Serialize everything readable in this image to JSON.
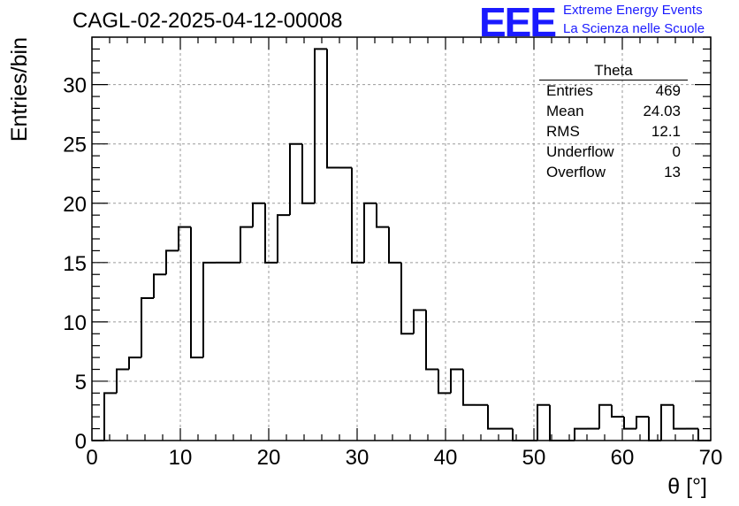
{
  "run_title": "CAGL-02-2025-04-12-00008",
  "logo": {
    "mark": "EEE",
    "line1": "Extreme Energy Events",
    "line2": "La Scienza nelle Scuole",
    "color": "#1a1aff"
  },
  "stats_box": {
    "title": "Theta",
    "rows": [
      {
        "label": "Entries",
        "value": "469"
      },
      {
        "label": "Mean",
        "value": "24.03"
      },
      {
        "label": "RMS",
        "value": "12.1"
      },
      {
        "label": "Underflow",
        "value": "0"
      },
      {
        "label": "Overflow",
        "value": "13"
      }
    ]
  },
  "chart_data": {
    "type": "histogram",
    "title": "",
    "xlabel": "θ [°]",
    "ylabel": "Entries/bin",
    "xlim": [
      0,
      70
    ],
    "ylim": [
      0,
      34
    ],
    "bin_width": 1.4,
    "bin_low_edge": 0,
    "x_ticks": [
      0,
      10,
      20,
      30,
      40,
      50,
      60,
      70
    ],
    "x_tick_labels": [
      "0",
      "10",
      "20",
      "30",
      "40",
      "50",
      "60",
      "70"
    ],
    "y_ticks": [
      0,
      5,
      10,
      15,
      20,
      25,
      30
    ],
    "y_tick_labels": [
      "0",
      "5",
      "10",
      "15",
      "20",
      "25",
      "30"
    ],
    "grid": true,
    "values": [
      0,
      4,
      6,
      7,
      12,
      14,
      16,
      18,
      7,
      15,
      15,
      15,
      18,
      20,
      15,
      19,
      25,
      20,
      33,
      23,
      23,
      15,
      20,
      18,
      15,
      9,
      11,
      6,
      4,
      6,
      3,
      3,
      1,
      1,
      0,
      0,
      3,
      0,
      0,
      1,
      1,
      3,
      2,
      1,
      2,
      0,
      3,
      1,
      1,
      0
    ],
    "line_color": "#000000",
    "grid_color": "#9a9a9a"
  }
}
